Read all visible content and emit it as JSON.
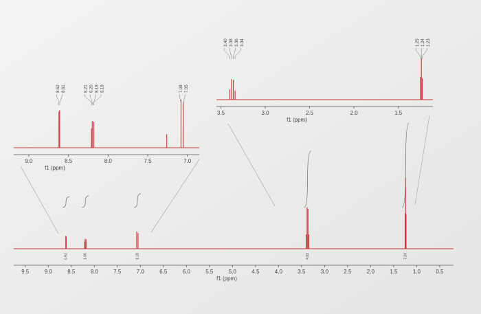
{
  "chart_data": [
    {
      "type": "line",
      "x_label": "f1 (ppm)",
      "xlim": [
        9.75,
        0.2
      ],
      "ylim": [
        0,
        100
      ],
      "color": "#c8333a",
      "xticks": [
        9.5,
        {
          "value": 9,
          "label": "9.0"
        },
        8.5,
        {
          "value": 8,
          "label": "8.0"
        },
        7.5,
        {
          "value": 7,
          "label": "7.0"
        },
        6.5,
        {
          "value": 6,
          "label": "6.0"
        },
        5.5,
        {
          "value": 5,
          "label": "5.0"
        },
        4.5,
        {
          "value": 4,
          "label": "4.0"
        },
        3.5,
        {
          "value": 3,
          "label": "3.0"
        },
        2.5,
        {
          "value": 2,
          "label": "2.0"
        },
        1.5,
        {
          "value": 1,
          "label": "1.0"
        },
        0.5
      ],
      "x": [
        8.62,
        8.61,
        8.21,
        8.2,
        8.18,
        8.18,
        7.08,
        7.05,
        3.4,
        3.38,
        3.36,
        3.34,
        1.25,
        1.24,
        1.23
      ],
      "values": [
        18,
        17,
        10,
        14,
        13,
        9,
        24,
        22,
        20,
        58,
        56,
        20,
        50,
        100,
        48
      ],
      "integrals": {
        "x": [
          8.615,
          8.195,
          7.065,
          3.37,
          1.24
        ],
        "values": [
          0.91,
          1,
          1.18,
          4.83,
          7.24
        ],
        "value_labels": [
          "0.91",
          "1.00",
          "1.18",
          "4.83",
          "7.24"
        ]
      }
    },
    {
      "type": "line",
      "x_label": "f1 (ppm)",
      "xlim": [
        9.19,
        6.85
      ],
      "ylim": [
        0,
        100
      ],
      "color": "#c8333a",
      "xticks": [
        {
          "value": 9,
          "label": "9.0"
        },
        8.5,
        {
          "value": 8,
          "label": "8.0"
        },
        7.5,
        {
          "value": 7,
          "label": "7.0"
        }
      ],
      "x": [
        8.62,
        8.61,
        8.21,
        8.2,
        8.18,
        8.18,
        7.26,
        7.08,
        7.05
      ],
      "x_labels": [
        "8.62",
        "8.61",
        "8.21",
        "8.20",
        "8.18",
        "8.18",
        null,
        "7.08",
        "7.05"
      ],
      "values": [
        75,
        78,
        40,
        55,
        54,
        38,
        28,
        100,
        95
      ]
    },
    {
      "type": "line",
      "x_label": "f1 (ppm)",
      "xlim": [
        3.55,
        1.11
      ],
      "ylim": [
        0,
        100
      ],
      "color": "#c8333a",
      "xticks": [
        3.5,
        {
          "value": 3,
          "label": "3.0"
        },
        2.5,
        {
          "value": 2,
          "label": "2.0"
        },
        1.5
      ],
      "x": [
        3.4,
        3.38,
        3.36,
        3.34,
        1.25,
        1.24,
        1.23
      ],
      "x_labels": [
        "3.40",
        "3.38",
        "3.36",
        "3.34",
        "1.25",
        "1.24",
        "1.23"
      ],
      "values": [
        25,
        50,
        48,
        22,
        55,
        100,
        52
      ]
    }
  ]
}
